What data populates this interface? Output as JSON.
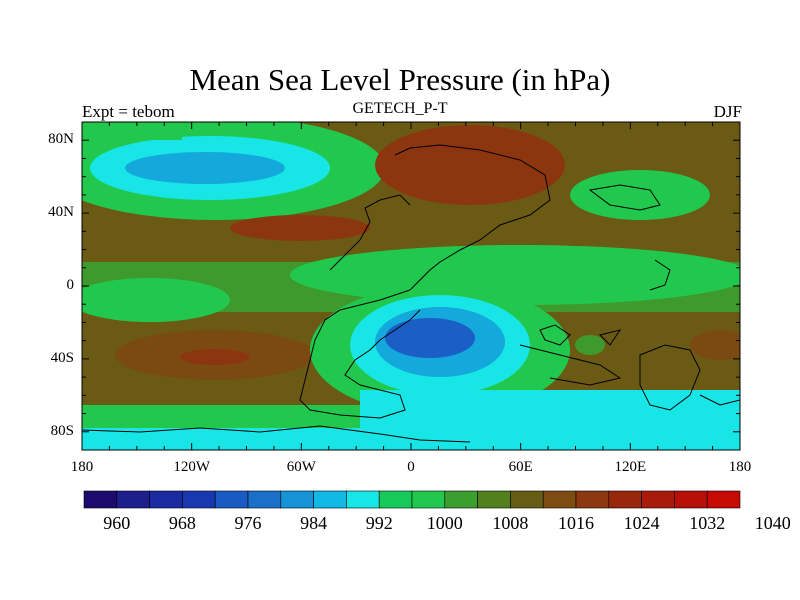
{
  "header": {
    "title": "Mean Sea Level Pressure (in hPa)",
    "left_subtitle": "Expt = tebom",
    "center_subtitle": "GETECH_P-T",
    "right_subtitle": "DJF"
  },
  "axes": {
    "y_ticks": [
      {
        "lat": 80,
        "label": "80N"
      },
      {
        "lat": 40,
        "label": "40N"
      },
      {
        "lat": 0,
        "label": "0"
      },
      {
        "lat": -40,
        "label": "40S"
      },
      {
        "lat": -80,
        "label": "80S"
      }
    ],
    "x_ticks": [
      {
        "lon": -180,
        "label": "180"
      },
      {
        "lon": -120,
        "label": "120W"
      },
      {
        "lon": -60,
        "label": "60W"
      },
      {
        "lon": 0,
        "label": "0"
      },
      {
        "lon": 60,
        "label": "60E"
      },
      {
        "lon": 120,
        "label": "120E"
      },
      {
        "lon": 180,
        "label": "180"
      }
    ]
  },
  "colorbar": {
    "colors": [
      "#1c0a6e",
      "#1e1e8c",
      "#1a2aa0",
      "#1838b0",
      "#1a5ac4",
      "#1a70c8",
      "#1494d6",
      "#12b8e6",
      "#16e6e6",
      "#18c858",
      "#22c84e",
      "#3c9e2e",
      "#52801c",
      "#665c14",
      "#7e4c12",
      "#8c3810",
      "#98280c",
      "#a81a0a",
      "#b81008",
      "#c80a04"
    ],
    "labels": [
      {
        "index": 1,
        "label": "960"
      },
      {
        "index": 3,
        "label": "968"
      },
      {
        "index": 5,
        "label": "976"
      },
      {
        "index": 7,
        "label": "984"
      },
      {
        "index": 9,
        "label": "992"
      },
      {
        "index": 11,
        "label": "1000"
      },
      {
        "index": 13,
        "label": "1008"
      },
      {
        "index": 15,
        "label": "1016"
      },
      {
        "index": 17,
        "label": "1024"
      },
      {
        "index": 19,
        "label": "1032"
      },
      {
        "index": 21,
        "label": "1040"
      }
    ]
  },
  "palette": {
    "high": "#6b5a14",
    "very_high": "#8c3610",
    "mid": "#22c84e",
    "mid_dark": "#3e9a2c",
    "low": "#18e6e6",
    "lower": "#14a8dc",
    "lowest": "#1a5ec6",
    "deepest": "#1a3cb4",
    "coast": "#000000"
  }
}
